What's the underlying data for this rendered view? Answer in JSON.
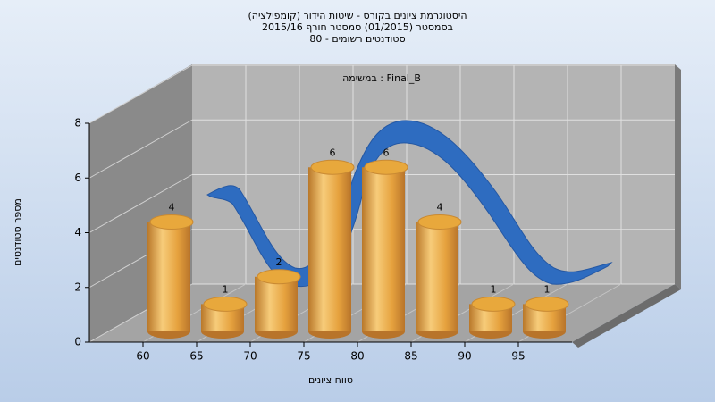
{
  "chart_data": {
    "type": "histogram",
    "title": "היסטוגרמת ציונים בקורס - שיטות הידור (קומפילציה)",
    "subtitle": "בסמסטר  (01/2015)  סמסטר חורף 2015/16",
    "subtitle2": "סטודנטים רשומים - 80",
    "annotation": "במשימה : Final_B",
    "x_label": "טווח ציונים",
    "y_label": "מספר סטודנטים",
    "bins": [
      60,
      65,
      70,
      75,
      80,
      85,
      90,
      95,
      100
    ],
    "values": [
      4,
      1,
      2,
      6,
      6,
      4,
      1,
      1
    ],
    "color": "#e8a83c",
    "xlim": [
      55,
      100
    ],
    "xticks": [
      60,
      65,
      70,
      75,
      80,
      85,
      90,
      95
    ],
    "ylim": [
      0,
      8
    ],
    "yticks": [
      0,
      2,
      4,
      6,
      8
    ],
    "grid": true
  }
}
